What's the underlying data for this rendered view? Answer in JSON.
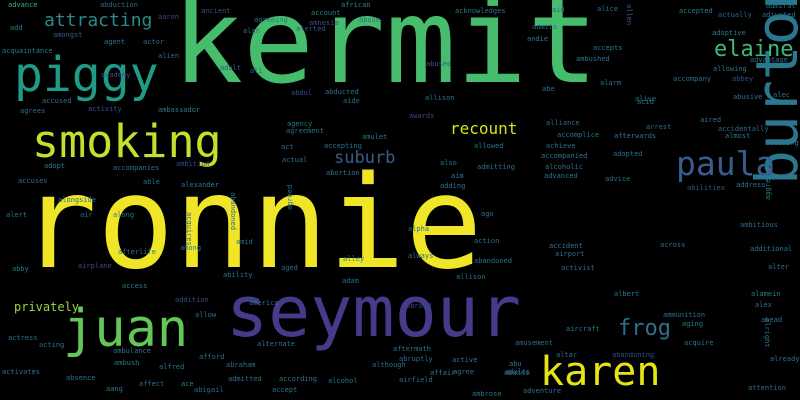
{
  "words": [
    {
      "text": "ronnie",
      "color": "#f0e526"
    },
    {
      "text": "kermit",
      "color": "#45bd6c"
    },
    {
      "text": "seymour",
      "color": "#463a8a"
    },
    {
      "text": "piggy",
      "color": "#1f9c88"
    },
    {
      "text": "smoking",
      "color": "#c4df2c"
    },
    {
      "text": "burton",
      "color": "#2a778e"
    },
    {
      "text": "juan",
      "color": "#62c757"
    },
    {
      "text": "karen",
      "color": "#e6e418"
    },
    {
      "text": "paula",
      "color": "#3a5b8c"
    },
    {
      "text": "attracting",
      "color": "#2a8b8b"
    },
    {
      "text": "elaine",
      "color": "#3eb77a"
    },
    {
      "text": "frog",
      "color": "#2d6f8e"
    },
    {
      "text": "suburb",
      "color": "#3a5c8c"
    },
    {
      "text": "recount",
      "color": "#d8e11e"
    },
    {
      "text": "privately",
      "color": "#94d83f"
    },
    {
      "text": "advance",
      "color": "#35b77a"
    },
    {
      "text": "abduction",
      "color": "#2e6a8d"
    },
    {
      "text": "aaron",
      "color": "#3b4b88"
    },
    {
      "text": "ancient",
      "color": "#3b5089"
    },
    {
      "text": "agreeing",
      "color": "#2a778e"
    },
    {
      "text": "alan",
      "color": "#2a748e"
    },
    {
      "text": "account",
      "color": "#2a7f8e"
    },
    {
      "text": "amnesia",
      "color": "#3d4e8a"
    },
    {
      "text": "african",
      "color": "#2b8a8c"
    },
    {
      "text": "alerted",
      "color": "#3a568c"
    },
    {
      "text": "abuse",
      "color": "#2c6e8e"
    },
    {
      "text": "acknowledges",
      "color": "#2f728e"
    },
    {
      "text": "aid",
      "color": "#3b5c8c"
    },
    {
      "text": "alice",
      "color": "#2b748e"
    },
    {
      "text": "allen",
      "color": "#3a5a8c"
    },
    {
      "text": "accepted",
      "color": "#2a7b8e"
    },
    {
      "text": "actually",
      "color": "#30648e"
    },
    {
      "text": "admiral",
      "color": "#2c708e"
    },
    {
      "text": "adjusted",
      "color": "#2e6b8e"
    },
    {
      "text": "add",
      "color": "#26828e"
    },
    {
      "text": "amongst",
      "color": "#3b5b8b"
    },
    {
      "text": "agent",
      "color": "#2a788e"
    },
    {
      "text": "actor",
      "color": "#2c6d8e"
    },
    {
      "text": "alien",
      "color": "#3a5e8c"
    },
    {
      "text": "acquaintance",
      "color": "#2a798e"
    },
    {
      "text": "academy",
      "color": "#3b528b"
    },
    {
      "text": "accused",
      "color": "#30758e"
    },
    {
      "text": "agrees",
      "color": "#2a6f8e"
    },
    {
      "text": "activity",
      "color": "#3b528b"
    },
    {
      "text": "ambassador",
      "color": "#2f798e"
    },
    {
      "text": "adult",
      "color": "#3b568c"
    },
    {
      "text": "ali",
      "color": "#2a6f8e"
    },
    {
      "text": "aide",
      "color": "#2a748e"
    },
    {
      "text": "abducted",
      "color": "#30728e"
    },
    {
      "text": "agency",
      "color": "#2b788e"
    },
    {
      "text": "agreement",
      "color": "#2e6b8e"
    },
    {
      "text": "accepting",
      "color": "#2c708e"
    },
    {
      "text": "amulet",
      "color": "#2b768e"
    },
    {
      "text": "abused",
      "color": "#3a538b"
    },
    {
      "text": "allison",
      "color": "#2b748e"
    },
    {
      "text": "andie",
      "color": "#2b788e"
    },
    {
      "text": "admits",
      "color": "#2d6d8e"
    },
    {
      "text": "adoptive",
      "color": "#30788e"
    },
    {
      "text": "allowing",
      "color": "#2b788e"
    },
    {
      "text": "advantage",
      "color": "#2a748e"
    },
    {
      "text": "accompany",
      "color": "#2c708e"
    },
    {
      "text": "abbey",
      "color": "#3c4a88"
    },
    {
      "text": "abusive",
      "color": "#30728e"
    },
    {
      "text": "alec",
      "color": "#2b788e"
    },
    {
      "text": "alliance",
      "color": "#2c6f8e"
    },
    {
      "text": "accomplice",
      "color": "#2b748e"
    },
    {
      "text": "afterwards",
      "color": "#30728e"
    },
    {
      "text": "accidentally",
      "color": "#2c708e"
    },
    {
      "text": "almost",
      "color": "#2b768e"
    },
    {
      "text": "accusing",
      "color": "#30728e"
    },
    {
      "text": "achieve",
      "color": "#2c708e"
    },
    {
      "text": "accompanied",
      "color": "#2b788e"
    },
    {
      "text": "adopted",
      "color": "#2d6d8e"
    },
    {
      "text": "alcoholic",
      "color": "#30728e"
    },
    {
      "text": "advanced",
      "color": "#2b748e"
    },
    {
      "text": "advice",
      "color": "#2c708e"
    },
    {
      "text": "address",
      "color": "#30728e"
    },
    {
      "text": "abilities",
      "color": "#3b538b"
    },
    {
      "text": "aggressive",
      "color": "#2b788e"
    },
    {
      "text": "ambitious",
      "color": "#2c708e"
    },
    {
      "text": "additional",
      "color": "#2b748e"
    },
    {
      "text": "alter",
      "color": "#2c708e"
    },
    {
      "text": "alamein",
      "color": "#2b788e"
    },
    {
      "text": "alex",
      "color": "#2c708e"
    },
    {
      "text": "ahead",
      "color": "#30728e"
    },
    {
      "text": "already",
      "color": "#2b748e"
    },
    {
      "text": "attention",
      "color": "#2c708e"
    },
    {
      "text": "adopt",
      "color": "#2b788e"
    },
    {
      "text": "ambition",
      "color": "#3c4a88"
    },
    {
      "text": "accompanies",
      "color": "#2c708e"
    },
    {
      "text": "accuses",
      "color": "#30728e"
    },
    {
      "text": "alongside",
      "color": "#2b748e"
    },
    {
      "text": "able",
      "color": "#2c708e"
    },
    {
      "text": "alexander",
      "color": "#2b788e"
    },
    {
      "text": "abandoned",
      "color": "#2c708e"
    },
    {
      "text": "alert",
      "color": "#2b748e"
    },
    {
      "text": "air",
      "color": "#2c708e"
    },
    {
      "text": "along",
      "color": "#2b788e"
    },
    {
      "text": "among",
      "color": "#2c708e"
    },
    {
      "text": "acquires",
      "color": "#30728e"
    },
    {
      "text": "agreed",
      "color": "#2b748e"
    },
    {
      "text": "amid",
      "color": "#2c708e"
    },
    {
      "text": "alley",
      "color": "#2b788e"
    },
    {
      "text": "adam",
      "color": "#2c708e"
    },
    {
      "text": "always",
      "color": "#30728e"
    },
    {
      "text": "alpha",
      "color": "#2b748e"
    },
    {
      "text": "action",
      "color": "#2c708e"
    },
    {
      "text": "accident",
      "color": "#2b788e"
    },
    {
      "text": "airport",
      "color": "#2c708e"
    },
    {
      "text": "across",
      "color": "#30728e"
    },
    {
      "text": "abandoned",
      "color": "#2b748e"
    },
    {
      "text": "activist",
      "color": "#2c708e"
    },
    {
      "text": "abby",
      "color": "#2b788e"
    },
    {
      "text": "afterlife",
      "color": "#2c708e"
    },
    {
      "text": "airplane",
      "color": "#3c4a88"
    },
    {
      "text": "ability",
      "color": "#2b748e"
    },
    {
      "text": "aged",
      "color": "#2c708e"
    },
    {
      "text": "access",
      "color": "#2b788e"
    },
    {
      "text": "addition",
      "color": "#3c4a88"
    },
    {
      "text": "allow",
      "color": "#2c708e"
    },
    {
      "text": "america",
      "color": "#30728e"
    },
    {
      "text": "albert",
      "color": "#2b748e"
    },
    {
      "text": "ammunition",
      "color": "#2c708e"
    },
    {
      "text": "aging",
      "color": "#2b788e"
    },
    {
      "text": "acquire",
      "color": "#2c708e"
    },
    {
      "text": "alright",
      "color": "#30728e"
    },
    {
      "text": "actress",
      "color": "#2b748e"
    },
    {
      "text": "acting",
      "color": "#2c708e"
    },
    {
      "text": "ambulance",
      "color": "#2b788e"
    },
    {
      "text": "afford",
      "color": "#2c708e"
    },
    {
      "text": "alternate",
      "color": "#30728e"
    },
    {
      "text": "aftermath",
      "color": "#2b748e"
    },
    {
      "text": "amusement",
      "color": "#2c708e"
    },
    {
      "text": "aircraft",
      "color": "#2b788e"
    },
    {
      "text": "abandoning",
      "color": "#3c4a88"
    },
    {
      "text": "abraham",
      "color": "#2c708e"
    },
    {
      "text": "alfred",
      "color": "#2b748e"
    },
    {
      "text": "abruptly",
      "color": "#2c708e"
    },
    {
      "text": "abu",
      "color": "#2b788e"
    },
    {
      "text": "altar",
      "color": "#2c708e"
    },
    {
      "text": "abuses",
      "color": "#30728e"
    },
    {
      "text": "activates",
      "color": "#2b748e"
    },
    {
      "text": "absence",
      "color": "#2c708e"
    },
    {
      "text": "ambush",
      "color": "#2b788e"
    },
    {
      "text": "although",
      "color": "#2c708e"
    },
    {
      "text": "agree",
      "color": "#30728e"
    },
    {
      "text": "adults",
      "color": "#2b748e"
    },
    {
      "text": "affect",
      "color": "#2c708e"
    },
    {
      "text": "ace",
      "color": "#2b788e"
    },
    {
      "text": "admitted",
      "color": "#2c708e"
    },
    {
      "text": "according",
      "color": "#30728e"
    },
    {
      "text": "alcohol",
      "color": "#2b748e"
    },
    {
      "text": "airfield",
      "color": "#2c708e"
    },
    {
      "text": "affair",
      "color": "#2b788e"
    },
    {
      "text": "ambrose",
      "color": "#2c708e"
    },
    {
      "text": "adventure",
      "color": "#30728e"
    },
    {
      "text": "accept",
      "color": "#2b748e"
    },
    {
      "text": "abigail",
      "color": "#2c708e"
    },
    {
      "text": "aang",
      "color": "#2b788e"
    },
    {
      "text": "ambushed",
      "color": "#30728e"
    },
    {
      "text": "alarm",
      "color": "#2c708e"
    },
    {
      "text": "alive",
      "color": "#2b748e"
    },
    {
      "text": "abe",
      "color": "#2c708e"
    },
    {
      "text": "accepts",
      "color": "#2b788e"
    },
    {
      "text": "adding",
      "color": "#30728e"
    },
    {
      "text": "also",
      "color": "#2b748e"
    },
    {
      "text": "admitting",
      "color": "#2c708e"
    },
    {
      "text": "aim",
      "color": "#2b788e"
    },
    {
      "text": "ago",
      "color": "#2c708e"
    },
    {
      "text": "allison",
      "color": "#30728e"
    },
    {
      "text": "allowed",
      "color": "#2b748e"
    },
    {
      "text": "actual",
      "color": "#2c708e"
    },
    {
      "text": "abortion",
      "color": "#2b788e"
    },
    {
      "text": "act",
      "color": "#2c708e"
    },
    {
      "text": "abdul",
      "color": "#3c4a88"
    },
    {
      "text": "active",
      "color": "#30728e"
    },
    {
      "text": "awards",
      "color": "#3c4a88"
    },
    {
      "text": "abroad",
      "color": "#3c4a88"
    },
    {
      "text": "aired",
      "color": "#30728e"
    },
    {
      "text": "acid",
      "color": "#2b748e"
    },
    {
      "text": "arrest",
      "color": "#2c708e"
    }
  ]
}
